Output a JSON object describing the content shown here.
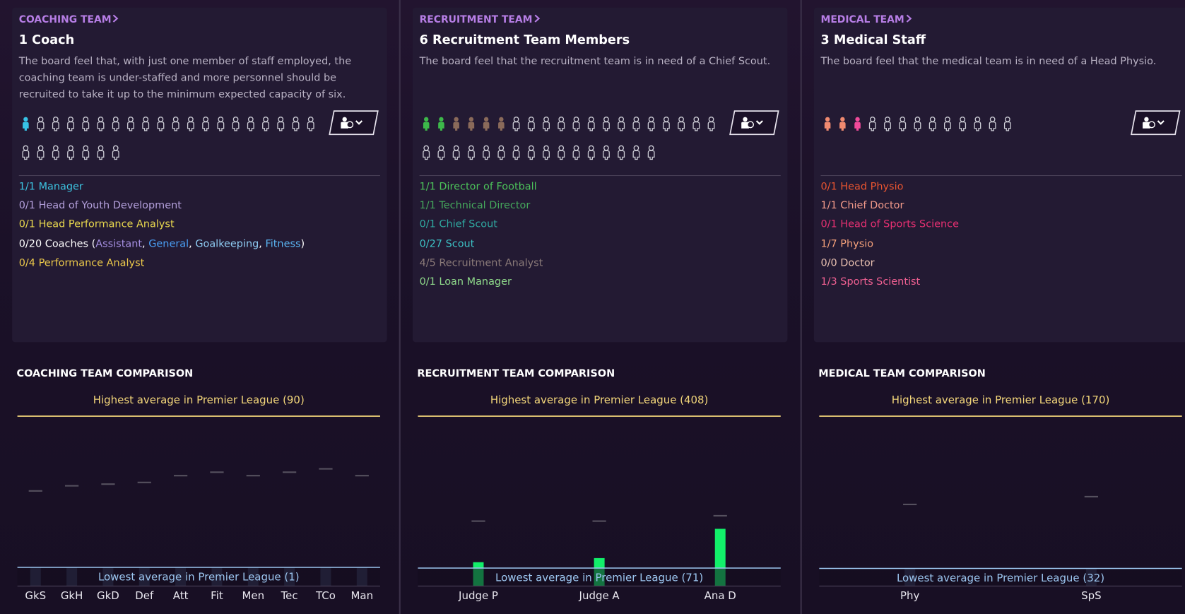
{
  "panels": [
    {
      "header": "COACHING TEAM",
      "title": "1 Coach",
      "description": "The board feel that, with just one member of staff employed, the coaching team is under-staffed and more personnel should be recruited to take it up to the minimum expected capacity of six.",
      "roles": [
        {
          "parts": [
            {
              "text": "1/1 Manager",
              "color": "#3cc3e0"
            }
          ]
        },
        {
          "parts": [
            {
              "text": "0/1 Head of Youth Development",
              "color": "#b4a0dc"
            }
          ]
        },
        {
          "parts": [
            {
              "text": "0/1 Head Performance Analyst",
              "color": "#e9d84e"
            }
          ]
        },
        {
          "parts": [
            {
              "text": "0/20 Coaches (",
              "color": "#ffffff"
            },
            {
              "text": "Assistant",
              "color": "#a48ee0"
            },
            {
              "text": ", ",
              "color": "#ffffff"
            },
            {
              "text": "General",
              "color": "#4a9ff5"
            },
            {
              "text": ", ",
              "color": "#ffffff"
            },
            {
              "text": "Goalkeeping",
              "color": "#8ecbf2"
            },
            {
              "text": ", ",
              "color": "#ffffff"
            },
            {
              "text": "Fitness",
              "color": "#5ab4f2"
            },
            {
              "text": ")",
              "color": "#ffffff"
            }
          ]
        },
        {
          "parts": [
            {
              "text": "0/4 Performance Analyst",
              "color": "#ecc94a"
            }
          ]
        }
      ],
      "chart_data": {
        "type": "bar",
        "title": "COACHING TEAM COMPARISON",
        "highest_label": "Highest average in Premier League (90)",
        "highest": 90,
        "lowest_label": "Lowest average in Premier League (1)",
        "lowest": 1,
        "categories": [
          "GkS",
          "GkH",
          "GkD",
          "Def",
          "Att",
          "Fit",
          "Men",
          "Tec",
          "TCo",
          "Man"
        ],
        "values": [
          1,
          1,
          1,
          1,
          1,
          1,
          1,
          1,
          1,
          1
        ],
        "averages": [
          46,
          49,
          50,
          51,
          55,
          57,
          55,
          57,
          59,
          55
        ],
        "color": "#2f3452",
        "ylim": [
          -10,
          90
        ]
      }
    },
    {
      "header": "RECRUITMENT TEAM",
      "title": "6 Recruitment Team Members",
      "description": "The board feel that the recruitment team is in need of a Chief Scout.",
      "roles": [
        {
          "parts": [
            {
              "text": "1/1 Director of Football",
              "color": "#4cc35a"
            }
          ]
        },
        {
          "parts": [
            {
              "text": "1/1 Technical Director",
              "color": "#45a85c"
            }
          ]
        },
        {
          "parts": [
            {
              "text": "0/1 Chief Scout",
              "color": "#2fa8a0"
            }
          ]
        },
        {
          "parts": [
            {
              "text": "0/27 Scout",
              "color": "#3cc0c4"
            }
          ]
        },
        {
          "parts": [
            {
              "text": "4/5 Recruitment Analyst",
              "color": "#8a7a78"
            }
          ]
        },
        {
          "parts": [
            {
              "text": "0/1 Loan Manager",
              "color": "#8ed88a"
            }
          ]
        }
      ],
      "chart_data": {
        "type": "bar",
        "title": "RECRUITMENT TEAM COMPARISON",
        "highest_label": "Highest average in Premier League (408)",
        "highest": 408,
        "lowest_label": "Lowest average in Premier League (71)",
        "lowest": 71,
        "categories": [
          "Judge P",
          "Judge A",
          "Ana D"
        ],
        "values": [
          84,
          93,
          158
        ],
        "averages": [
          175,
          175,
          187
        ],
        "color": "#12f06a",
        "ylim": [
          31,
          408
        ]
      }
    },
    {
      "header": "MEDICAL TEAM",
      "title": "3 Medical Staff",
      "description": "The board feel that the medical team is in need of a Head Physio.",
      "roles": [
        {
          "parts": [
            {
              "text": "0/1 Head Physio",
              "color": "#ea5530"
            }
          ]
        },
        {
          "parts": [
            {
              "text": "1/1 Chief Doctor",
              "color": "#f29a8a"
            }
          ]
        },
        {
          "parts": [
            {
              "text": "0/1 Head of Sports Science",
              "color": "#e83072"
            }
          ]
        },
        {
          "parts": [
            {
              "text": "1/7 Physio",
              "color": "#f4a07a"
            }
          ]
        },
        {
          "parts": [
            {
              "text": "0/0 Doctor",
              "color": "#e8c0b0"
            }
          ]
        },
        {
          "parts": [
            {
              "text": "1/3 Sports Scientist",
              "color": "#f06092"
            }
          ]
        }
      ],
      "chart_data": {
        "type": "bar",
        "title": "MEDICAL TEAM COMPARISON",
        "highest_label": "Highest average in Premier League (170)",
        "highest": 170,
        "lowest_label": "Lowest average in Premier League (32)",
        "lowest": 32,
        "categories": [
          "Phy",
          "SpS"
        ],
        "values": [
          32,
          32
        ],
        "averages": [
          90,
          97
        ],
        "color": "#2f3452",
        "ylim": [
          16,
          170
        ]
      }
    }
  ]
}
